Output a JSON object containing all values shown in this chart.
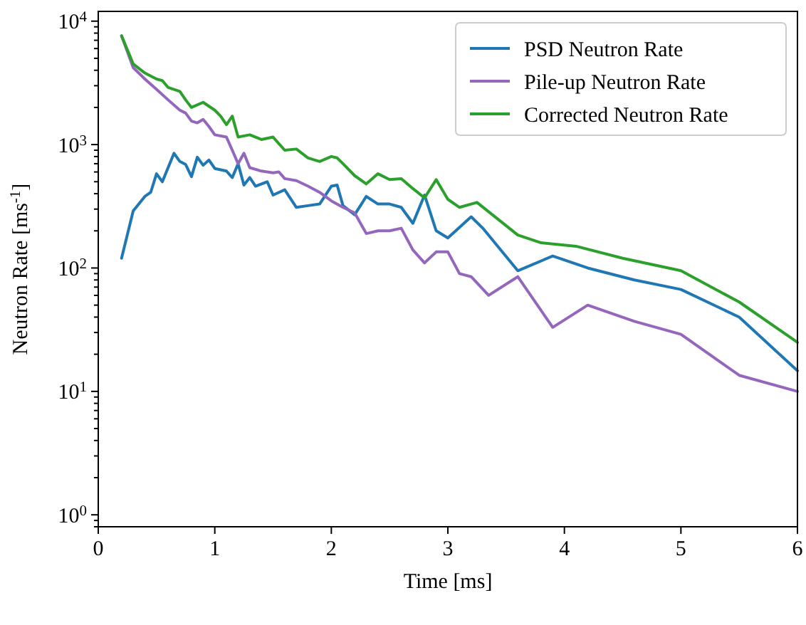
{
  "chart_data": {
    "type": "line",
    "xlabel": "Time [ms]",
    "ylabel": "Neutron Rate [ms$^{-1}$]",
    "log": "y",
    "xlim": [
      0,
      6
    ],
    "xticks": [
      0,
      1,
      2,
      3,
      4,
      5,
      6
    ],
    "ylim": [
      0.8,
      12000
    ],
    "yticks": [
      {
        "value": 1,
        "label": "10$^{0}$"
      },
      {
        "value": 10,
        "label": "10$^{1}$"
      },
      {
        "value": 100,
        "label": "10$^{2}$"
      },
      {
        "value": 1000,
        "label": "10$^{3}$"
      },
      {
        "value": 10000,
        "label": "10$^{4}$"
      }
    ],
    "legend": "top right",
    "grid": false,
    "marker": "none",
    "line_style": "solid",
    "series": [
      {
        "name": "PSD Neutron Rate",
        "color": "#1f77b4",
        "x": [
          0.2,
          0.3,
          0.4,
          0.45,
          0.5,
          0.55,
          0.65,
          0.7,
          0.75,
          0.8,
          0.85,
          0.9,
          0.95,
          1.0,
          1.1,
          1.15,
          1.2,
          1.25,
          1.3,
          1.35,
          1.45,
          1.5,
          1.6,
          1.7,
          1.8,
          1.9,
          2.0,
          2.05,
          2.1,
          2.2,
          2.3,
          2.4,
          2.5,
          2.6,
          2.7,
          2.8,
          2.9,
          3.0,
          3.2,
          3.3,
          3.6,
          3.9,
          4.2,
          4.6,
          5.0,
          5.5,
          6.0
        ],
        "values": [
          120,
          290,
          380,
          410,
          580,
          500,
          850,
          730,
          690,
          550,
          790,
          680,
          750,
          640,
          610,
          540,
          700,
          470,
          540,
          460,
          500,
          390,
          430,
          310,
          320,
          330,
          460,
          470,
          320,
          270,
          380,
          330,
          330,
          310,
          230,
          390,
          200,
          175,
          260,
          210,
          95,
          125,
          100,
          80,
          67,
          40,
          14.7
        ]
      },
      {
        "name": "Pile-up Neutron Rate",
        "color": "#9467bd",
        "x": [
          0.2,
          0.3,
          0.4,
          0.5,
          0.6,
          0.7,
          0.75,
          0.8,
          0.85,
          0.9,
          0.95,
          1.0,
          1.1,
          1.15,
          1.2,
          1.25,
          1.3,
          1.4,
          1.5,
          1.55,
          1.6,
          1.7,
          1.8,
          1.9,
          2.0,
          2.1,
          2.2,
          2.3,
          2.4,
          2.5,
          2.6,
          2.7,
          2.8,
          2.9,
          3.0,
          3.1,
          3.2,
          3.35,
          3.6,
          3.9,
          4.2,
          4.6,
          5.0,
          5.5,
          6.0
        ],
        "values": [
          7600,
          4200,
          3400,
          2800,
          2300,
          1900,
          1800,
          1550,
          1500,
          1600,
          1400,
          1200,
          1150,
          900,
          700,
          850,
          650,
          610,
          590,
          600,
          530,
          510,
          460,
          410,
          350,
          310,
          280,
          190,
          200,
          200,
          210,
          140,
          110,
          135,
          135,
          90,
          85,
          60,
          85,
          33,
          50,
          37,
          29,
          13.5,
          10
        ]
      },
      {
        "name": "Corrected Neutron Rate",
        "color": "#2ca02c",
        "x": [
          0.2,
          0.3,
          0.4,
          0.5,
          0.55,
          0.6,
          0.7,
          0.75,
          0.8,
          0.9,
          1.0,
          1.05,
          1.1,
          1.15,
          1.2,
          1.3,
          1.4,
          1.5,
          1.6,
          1.7,
          1.8,
          1.9,
          2.0,
          2.05,
          2.1,
          2.2,
          2.3,
          2.4,
          2.5,
          2.6,
          2.7,
          2.8,
          2.9,
          3.0,
          3.1,
          3.25,
          3.6,
          3.8,
          4.1,
          4.5,
          5.0,
          5.5,
          6.0
        ],
        "values": [
          7600,
          4500,
          3800,
          3400,
          3300,
          2900,
          2700,
          2300,
          2000,
          2200,
          1900,
          1700,
          1450,
          1700,
          1150,
          1200,
          1100,
          1150,
          900,
          920,
          780,
          730,
          800,
          780,
          700,
          560,
          480,
          580,
          520,
          530,
          440,
          370,
          520,
          360,
          310,
          340,
          185,
          160,
          150,
          120,
          95,
          53,
          25
        ]
      }
    ]
  }
}
